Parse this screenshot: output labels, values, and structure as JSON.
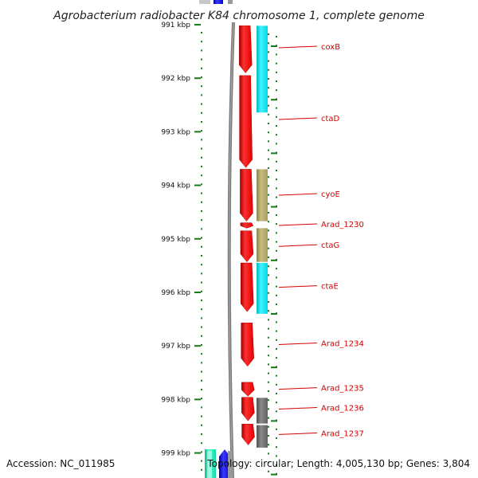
{
  "title": "Agrobacterium radiobacter K84 chromosome 1, complete genome",
  "accession": "Accession: NC_011985",
  "topology": "Topology: circular; Length: 4,005,130 bp; Genes: 3,804",
  "colors": {
    "backbone": "#7a7a7a",
    "cds": "#ff0000",
    "cyan": "#00e5ee",
    "khaki": "#b4a86a",
    "gray": "#707070",
    "blue": "#0000ee",
    "teal": "#1de9b6",
    "tick": "#1a7a1a",
    "label": "#d40000"
  },
  "scale": {
    "unit": "kbp",
    "ticks": [
      {
        "label": "991 kbp",
        "value": 991
      },
      {
        "label": "992 kbp",
        "value": 992
      },
      {
        "label": "993 kbp",
        "value": 993
      },
      {
        "label": "994 kbp",
        "value": 994
      },
      {
        "label": "995 kbp",
        "value": 995
      },
      {
        "label": "996 kbp",
        "value": 996
      },
      {
        "label": "997 kbp",
        "value": 997
      },
      {
        "label": "998 kbp",
        "value": 998
      },
      {
        "label": "999 kbp",
        "value": 999
      }
    ]
  },
  "genes": [
    {
      "label": "coxB",
      "start": 991.02,
      "end": 991.9,
      "track": "cds"
    },
    {
      "label": "ctaD",
      "start": 991.95,
      "end": 993.67,
      "track": "cds"
    },
    {
      "label": "cyoE",
      "start": 993.7,
      "end": 994.67,
      "track": "cds"
    },
    {
      "label": "Arad_1230",
      "start": 994.7,
      "end": 994.8,
      "track": "cds"
    },
    {
      "label": "ctaG",
      "start": 994.85,
      "end": 995.43,
      "track": "cds"
    },
    {
      "label": "ctaE",
      "start": 995.45,
      "end": 996.36,
      "track": "cds"
    },
    {
      "label": "Arad_1234",
      "start": 996.57,
      "end": 997.38,
      "track": "cds"
    },
    {
      "label": "Arad_1235",
      "start": 997.68,
      "end": 997.94,
      "track": "cds"
    },
    {
      "label": "Arad_1236",
      "start": 997.96,
      "end": 998.4,
      "track": "cds"
    },
    {
      "label": "Arad_1237",
      "start": 998.46,
      "end": 998.85,
      "track": "cds"
    }
  ],
  "features": [
    {
      "color": "cyan",
      "start": 991.02,
      "end": 992.64
    },
    {
      "color": "khaki",
      "start": 993.7,
      "end": 994.67
    },
    {
      "color": "khaki",
      "start": 994.8,
      "end": 995.43
    },
    {
      "color": "cyan",
      "start": 995.45,
      "end": 996.4
    },
    {
      "color": "gray",
      "start": 997.97,
      "end": 998.45
    },
    {
      "color": "gray",
      "start": 998.48,
      "end": 998.9
    }
  ]
}
